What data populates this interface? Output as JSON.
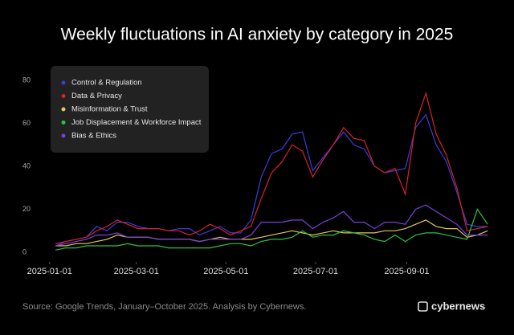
{
  "chart_data": {
    "type": "line",
    "title": "Weekly fluctuations in AI anxiety by category in 2025",
    "source": "Source: Google Trends, January–October 2025. Analysis by Cybernews.",
    "brand": "cybernews",
    "x": [
      "2025-01-05",
      "2025-01-12",
      "2025-01-19",
      "2025-01-26",
      "2025-02-02",
      "2025-02-09",
      "2025-02-16",
      "2025-02-23",
      "2025-03-02",
      "2025-03-09",
      "2025-03-16",
      "2025-03-23",
      "2025-03-30",
      "2025-04-06",
      "2025-04-13",
      "2025-04-20",
      "2025-04-27",
      "2025-05-04",
      "2025-05-11",
      "2025-05-18",
      "2025-05-25",
      "2025-06-01",
      "2025-06-08",
      "2025-06-15",
      "2025-06-22",
      "2025-06-29",
      "2025-07-06",
      "2025-07-13",
      "2025-07-20",
      "2025-07-27",
      "2025-08-03",
      "2025-08-10",
      "2025-08-17",
      "2025-08-24",
      "2025-08-31",
      "2025-09-07",
      "2025-09-14",
      "2025-09-21",
      "2025-09-28",
      "2025-10-05",
      "2025-10-12",
      "2025-10-19",
      "2025-10-26"
    ],
    "xlim": [
      "2024-12-13",
      "2025-11-08"
    ],
    "xticks": [
      "2025-01-01",
      "2025-03-01",
      "2025-05-01",
      "2025-07-01",
      "2025-09-01"
    ],
    "ylim": [
      0,
      80
    ],
    "yticks": [
      0,
      20,
      40,
      60,
      80
    ],
    "grid": false,
    "legend": "upper left",
    "series": [
      {
        "name": "Control & Regulation",
        "color": "#3c3ce0",
        "values": [
          3,
          5,
          6,
          7,
          12,
          10,
          14,
          14,
          12,
          11,
          11,
          10,
          11,
          11,
          8,
          10,
          12,
          9,
          9,
          15,
          35,
          46,
          48,
          55,
          56,
          38,
          44,
          50,
          56,
          50,
          48,
          40,
          37,
          38,
          39,
          58,
          64,
          50,
          42,
          28,
          13,
          12,
          12
        ]
      },
      {
        "name": "Data & Privacy",
        "color": "#d92323",
        "values": [
          4,
          5,
          6,
          7,
          10,
          12,
          15,
          13,
          11,
          11,
          11,
          10,
          10,
          8,
          10,
          13,
          11,
          8,
          10,
          12,
          25,
          37,
          42,
          50,
          47,
          35,
          43,
          50,
          58,
          53,
          52,
          40,
          37,
          39,
          27,
          60,
          74,
          55,
          45,
          30,
          10,
          11,
          12
        ]
      },
      {
        "name": "Misinformation & Trust",
        "color": "#e8c65a",
        "values": [
          3,
          3,
          4,
          4,
          5,
          6,
          8,
          7,
          7,
          7,
          6,
          6,
          6,
          6,
          5,
          6,
          7,
          6,
          6,
          6,
          7,
          8,
          9,
          10,
          9,
          8,
          9,
          10,
          9,
          9,
          9,
          9,
          10,
          10,
          11,
          13,
          15,
          12,
          11,
          11,
          7,
          8,
          10
        ]
      },
      {
        "name": "Job Displacement & Workforce Impact",
        "color": "#2fc23b",
        "values": [
          1,
          2,
          2,
          3,
          3,
          3,
          3,
          4,
          3,
          3,
          3,
          2,
          2,
          2,
          2,
          2,
          3,
          4,
          4,
          3,
          5,
          6,
          6,
          7,
          10,
          7,
          8,
          8,
          10,
          9,
          8,
          6,
          5,
          8,
          5,
          8,
          9,
          9,
          8,
          7,
          6,
          20,
          13
        ]
      },
      {
        "name": "Bias & Ethics",
        "color": "#7a3fd8",
        "values": [
          3,
          4,
          5,
          6,
          8,
          8,
          9,
          7,
          7,
          7,
          6,
          6,
          6,
          6,
          5,
          6,
          6,
          6,
          6,
          8,
          14,
          14,
          14,
          15,
          15,
          11,
          14,
          16,
          19,
          14,
          14,
          11,
          14,
          14,
          13,
          20,
          22,
          19,
          16,
          13,
          8,
          8,
          8
        ]
      }
    ]
  }
}
